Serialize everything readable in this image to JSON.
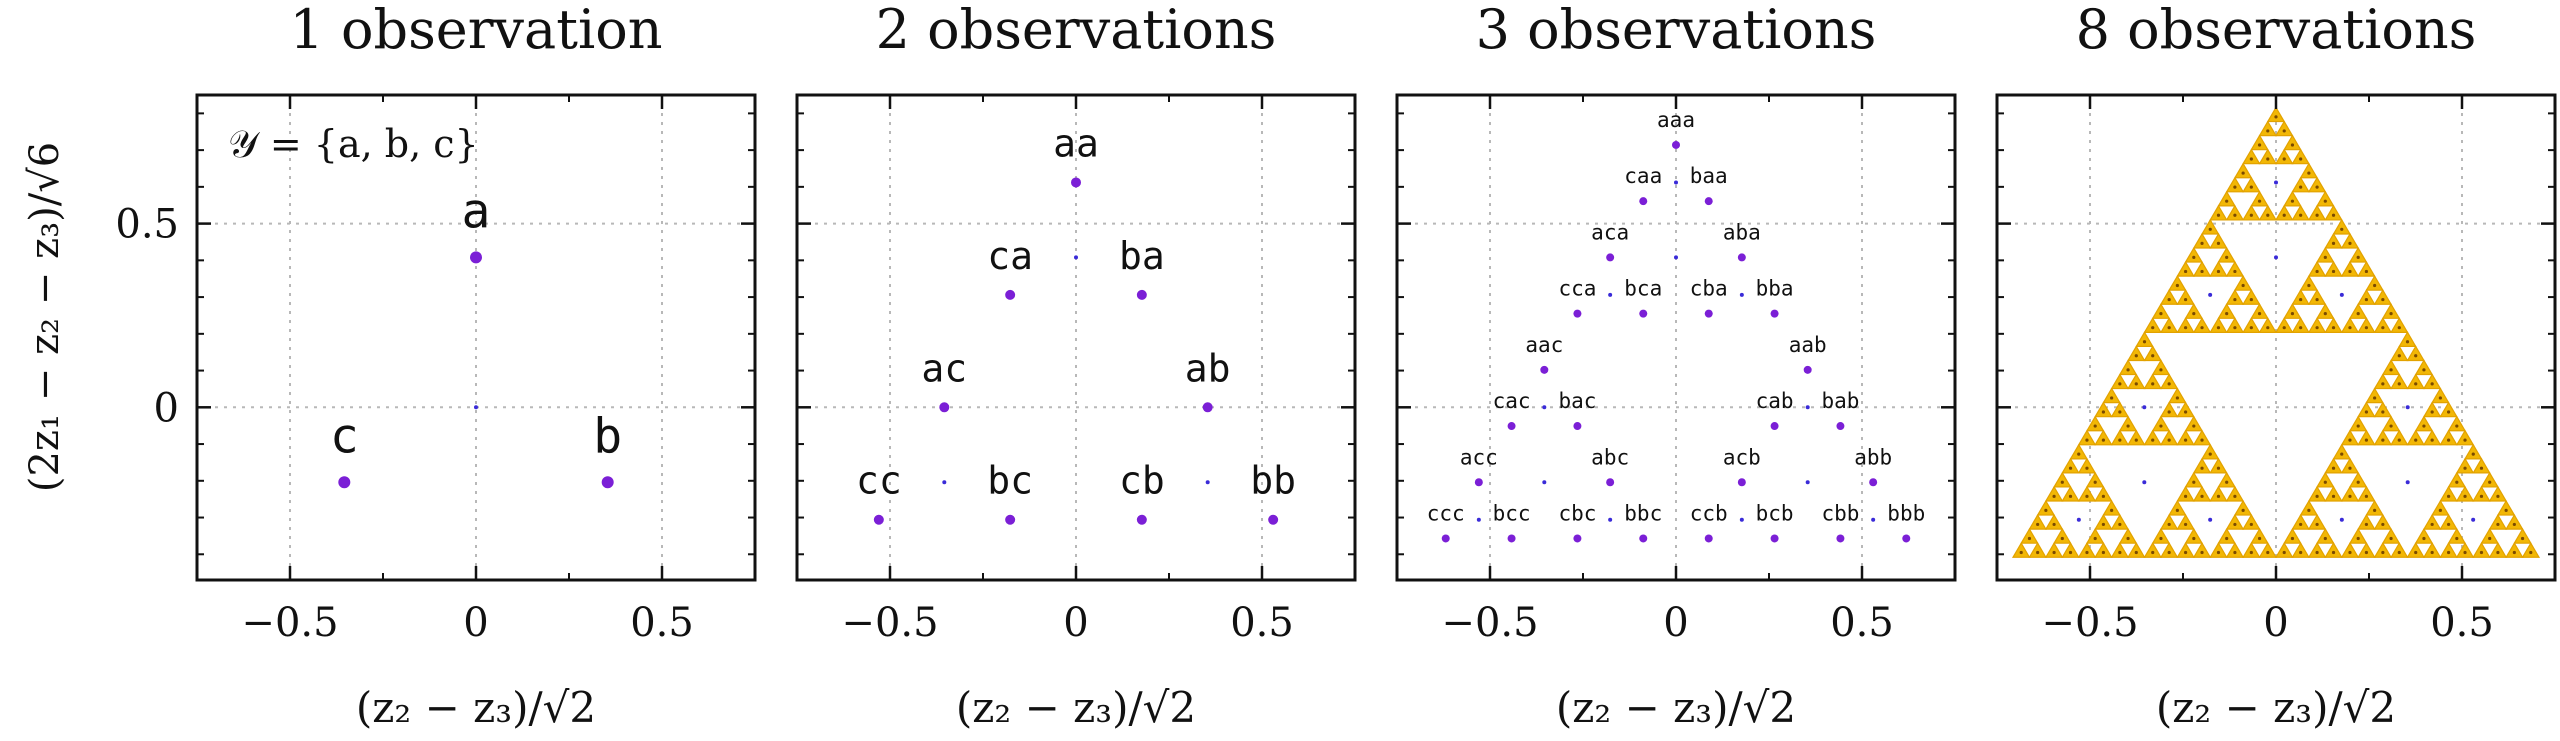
{
  "figure": {
    "ylabel": "(2z₁ − z₂ − z₃)/√6",
    "annotation": "𝒴 = {a, b, c}"
  },
  "colors": {
    "point": "#7b1fd6",
    "center": "#3a2bd8",
    "fractal_fill": "#f2b705",
    "fractal_edge": "#e2a200",
    "fractal_dot": "#7a4a00",
    "grid": "#b8b8b8",
    "axis": "#111111"
  },
  "chart_data": [
    {
      "type": "scatter",
      "title": "1 observation",
      "xlabel": "(z₂ − z₃)/√2",
      "xlim": [
        -0.75,
        0.75
      ],
      "ylim": [
        -0.47,
        0.85
      ],
      "xticks": [
        -0.5,
        0,
        0.5
      ],
      "xtick_labels": [
        "−0.5",
        "0",
        "0.5"
      ],
      "yticks": [
        0,
        0.5
      ],
      "ytick_labels": [
        "0",
        "0.5"
      ],
      "grid": true,
      "label_size": "large",
      "points": [
        {
          "label": "a",
          "x": 0.0,
          "y": 0.408
        },
        {
          "label": "b",
          "x": 0.354,
          "y": -0.204
        },
        {
          "label": "c",
          "x": -0.354,
          "y": -0.204
        }
      ],
      "centers": [
        [
          0.0,
          0.0
        ]
      ]
    },
    {
      "type": "scatter",
      "title": "2 observations",
      "xlabel": "(z₂ − z₃)/√2",
      "xlim": [
        -0.75,
        0.75
      ],
      "ylim": [
        -0.47,
        0.85
      ],
      "xticks": [
        -0.5,
        0,
        0.5
      ],
      "xtick_labels": [
        "−0.5",
        "0",
        "0.5"
      ],
      "yticks": [
        0,
        0.5
      ],
      "ytick_labels": [
        "0",
        "0.5"
      ],
      "grid": true,
      "label_size": "medium",
      "points": [
        {
          "label": "aa",
          "x": 0.0,
          "y": 0.612
        },
        {
          "label": "ba",
          "x": 0.177,
          "y": 0.306
        },
        {
          "label": "ca",
          "x": -0.177,
          "y": 0.306
        },
        {
          "label": "ab",
          "x": 0.354,
          "y": 0.0
        },
        {
          "label": "ac",
          "x": -0.354,
          "y": 0.0
        },
        {
          "label": "bb",
          "x": 0.53,
          "y": -0.306
        },
        {
          "label": "cb",
          "x": 0.177,
          "y": -0.306
        },
        {
          "label": "bc",
          "x": -0.177,
          "y": -0.306
        },
        {
          "label": "cc",
          "x": -0.53,
          "y": -0.306
        }
      ],
      "centers": [
        [
          0.0,
          0.408
        ],
        [
          0.354,
          -0.204
        ],
        [
          -0.354,
          -0.204
        ]
      ]
    },
    {
      "type": "scatter",
      "title": "3 observations",
      "xlabel": "(z₂ − z₃)/√2",
      "xlim": [
        -0.75,
        0.75
      ],
      "ylim": [
        -0.47,
        0.85
      ],
      "xticks": [
        -0.5,
        0,
        0.5
      ],
      "xtick_labels": [
        "−0.5",
        "0",
        "0.5"
      ],
      "yticks": [
        0,
        0.5
      ],
      "ytick_labels": [
        "0",
        "0.5"
      ],
      "grid": true,
      "label_size": "small",
      "points": [
        {
          "label": "aaa",
          "x": 0.0,
          "y": 0.714
        },
        {
          "label": "baa",
          "x": 0.088,
          "y": 0.561
        },
        {
          "label": "caa",
          "x": -0.088,
          "y": 0.561
        },
        {
          "label": "aba",
          "x": 0.177,
          "y": 0.408
        },
        {
          "label": "aca",
          "x": -0.177,
          "y": 0.408
        },
        {
          "label": "bba",
          "x": 0.265,
          "y": 0.255
        },
        {
          "label": "cba",
          "x": 0.088,
          "y": 0.255
        },
        {
          "label": "bca",
          "x": -0.088,
          "y": 0.255
        },
        {
          "label": "cca",
          "x": -0.265,
          "y": 0.255
        },
        {
          "label": "aab",
          "x": 0.354,
          "y": 0.102
        },
        {
          "label": "aac",
          "x": -0.354,
          "y": 0.102
        },
        {
          "label": "bab",
          "x": 0.442,
          "y": -0.051
        },
        {
          "label": "cab",
          "x": 0.265,
          "y": -0.051
        },
        {
          "label": "bac",
          "x": -0.265,
          "y": -0.051
        },
        {
          "label": "cac",
          "x": -0.442,
          "y": -0.051
        },
        {
          "label": "abb",
          "x": 0.53,
          "y": -0.204
        },
        {
          "label": "acb",
          "x": 0.177,
          "y": -0.204
        },
        {
          "label": "abc",
          "x": -0.177,
          "y": -0.204
        },
        {
          "label": "acc",
          "x": -0.53,
          "y": -0.204
        },
        {
          "label": "bbb",
          "x": 0.619,
          "y": -0.357
        },
        {
          "label": "cbb",
          "x": 0.442,
          "y": -0.357
        },
        {
          "label": "bcb",
          "x": 0.265,
          "y": -0.357
        },
        {
          "label": "ccb",
          "x": 0.088,
          "y": -0.357
        },
        {
          "label": "bbc",
          "x": -0.088,
          "y": -0.357
        },
        {
          "label": "cbc",
          "x": -0.265,
          "y": -0.357
        },
        {
          "label": "bcc",
          "x": -0.442,
          "y": -0.357
        },
        {
          "label": "ccc",
          "x": -0.619,
          "y": -0.357
        }
      ],
      "centers": [
        [
          0.0,
          0.408
        ],
        [
          0.354,
          -0.204
        ],
        [
          -0.354,
          -0.204
        ],
        [
          0.0,
          0.612
        ],
        [
          0.177,
          0.306
        ],
        [
          -0.177,
          0.306
        ],
        [
          0.354,
          0.0
        ],
        [
          -0.354,
          0.0
        ],
        [
          0.53,
          -0.306
        ],
        [
          0.177,
          -0.306
        ],
        [
          -0.177,
          -0.306
        ],
        [
          -0.53,
          -0.306
        ]
      ]
    },
    {
      "type": "scatter",
      "title": "8 observations",
      "xlabel": "(z₂ − z₃)/√2",
      "xlim": [
        -0.75,
        0.75
      ],
      "ylim": [
        -0.47,
        0.85
      ],
      "xticks": [
        -0.5,
        0,
        0.5
      ],
      "xtick_labels": [
        "−0.5",
        "0",
        "0.5"
      ],
      "yticks": [
        0,
        0.5
      ],
      "ytick_labels": [
        "0",
        "0.5"
      ],
      "grid": true,
      "fractal": {
        "kind": "sierpinski",
        "depth": 5,
        "vertices": [
          [
            0.0,
            0.816
          ],
          [
            0.707,
            -0.408
          ],
          [
            -0.707,
            -0.408
          ]
        ]
      },
      "centers": [
        [
          0.0,
          0.408
        ],
        [
          0.354,
          -0.204
        ],
        [
          -0.354,
          -0.204
        ],
        [
          0.0,
          0.612
        ],
        [
          0.177,
          0.306
        ],
        [
          -0.177,
          0.306
        ],
        [
          0.354,
          0.0
        ],
        [
          -0.354,
          0.0
        ],
        [
          0.53,
          -0.306
        ],
        [
          0.177,
          -0.306
        ],
        [
          -0.177,
          -0.306
        ],
        [
          -0.53,
          -0.306
        ]
      ]
    }
  ]
}
